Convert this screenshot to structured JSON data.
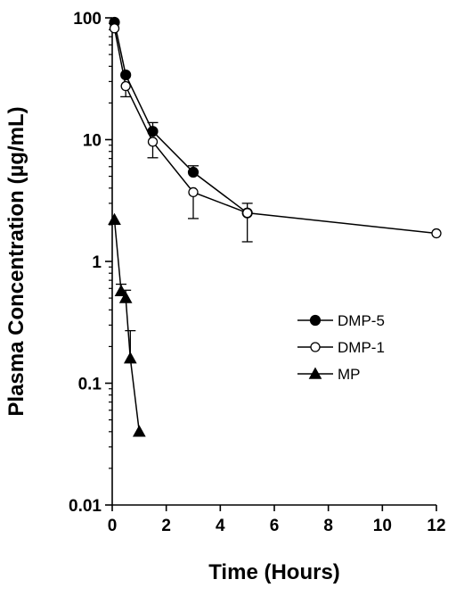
{
  "chart_data": {
    "type": "line",
    "title": "",
    "xlabel": "Time (Hours)",
    "ylabel": "Plasma Concentration (µg/mL)",
    "xlim": [
      0,
      12
    ],
    "ylim": [
      0.01,
      100
    ],
    "yscale": "log",
    "x_ticks": [
      0,
      2,
      4,
      6,
      8,
      10,
      12
    ],
    "x_tick_labels": [
      "0",
      "2",
      "4",
      "6",
      "8",
      "10",
      "12"
    ],
    "y_ticks": [
      0.01,
      0.1,
      1,
      10,
      100
    ],
    "y_tick_labels": [
      "0.01",
      "0.1",
      "1",
      "10",
      "100"
    ],
    "grid": false,
    "legend_position": "right",
    "series": [
      {
        "name": "DMP-5",
        "marker": "filled-circle",
        "x": [
          0.083,
          0.5,
          1.5,
          3,
          5
        ],
        "y": [
          92,
          34,
          11.7,
          5.4,
          2.5
        ],
        "error_upper": [
          null,
          null,
          13.8,
          6.1,
          3.0
        ],
        "error_lower": [
          null,
          null,
          null,
          null,
          1.45
        ]
      },
      {
        "name": "DMP-1",
        "marker": "open-circle",
        "x": [
          0.083,
          0.5,
          1.5,
          3,
          5,
          12
        ],
        "y": [
          82,
          27.5,
          9.6,
          3.7,
          2.5,
          1.7
        ],
        "error_upper": [
          null,
          null,
          null,
          null,
          null,
          null
        ],
        "error_lower": [
          null,
          22.5,
          7.1,
          2.25,
          null,
          null
        ]
      },
      {
        "name": "MP",
        "marker": "filled-triangle",
        "x": [
          0.083,
          0.33,
          0.5,
          0.67,
          1
        ],
        "y": [
          2.2,
          0.57,
          0.5,
          0.16,
          0.04
        ],
        "error_upper": [
          null,
          0.65,
          0.58,
          0.27,
          null
        ],
        "error_lower": [
          null,
          null,
          null,
          null,
          null
        ]
      }
    ]
  }
}
